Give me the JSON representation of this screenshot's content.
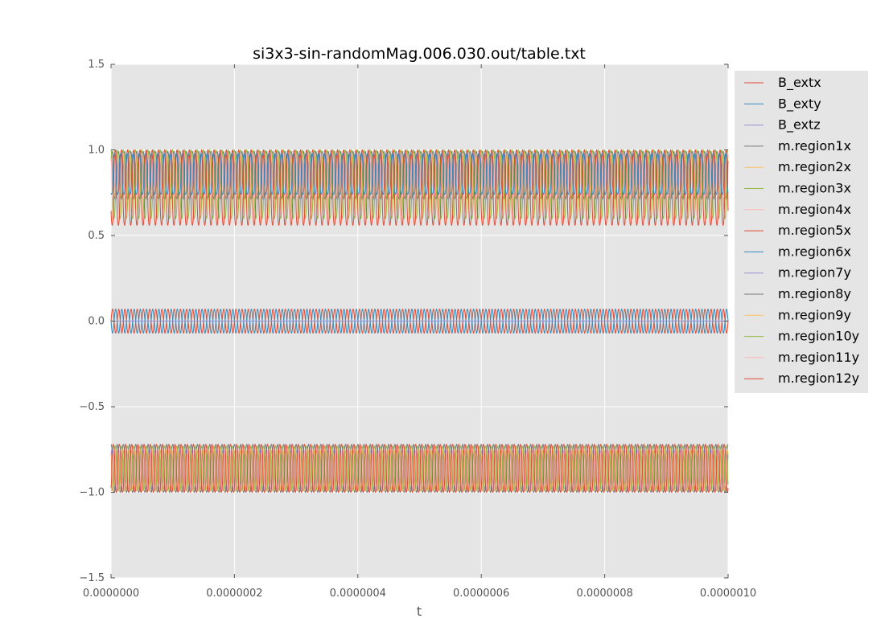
{
  "chart_data": {
    "type": "line",
    "title": "si3x3-sin-randomMag.006.030.out/table.txt",
    "xlabel": "t",
    "ylabel": "",
    "xlim": [
      0,
      1e-06
    ],
    "ylim": [
      -1.5,
      1.5
    ],
    "xticks": [
      0,
      2e-07,
      4e-07,
      6e-07,
      8e-07,
      1e-06
    ],
    "xtick_labels": [
      "0.0000000",
      "0.0000002",
      "0.0000004",
      "0.0000006",
      "0.0000008",
      "0.0000010"
    ],
    "yticks": [
      -1.5,
      -1.0,
      -0.5,
      0.0,
      0.5,
      1.0,
      1.5
    ],
    "ytick_labels": [
      "−1.5",
      "−1.0",
      "−0.5",
      "0.0",
      "0.5",
      "1.0",
      "1.5"
    ],
    "grid": true,
    "legend_position": "outside-right",
    "background": "#e5e5e5",
    "cycles_in_window": 100,
    "series": [
      {
        "name": "B_extx",
        "color": "#e24a33",
        "wave": "sin",
        "center": 0.0,
        "amplitude": 0.07,
        "phase_deg": 0
      },
      {
        "name": "B_exty",
        "color": "#348abd",
        "wave": "sin",
        "center": 0.0,
        "amplitude": 0.07,
        "phase_deg": 180
      },
      {
        "name": "B_extz",
        "color": "#988ed5",
        "wave": "sin",
        "center": 0.0,
        "amplitude": 0.0,
        "phase_deg": 0
      },
      {
        "name": "m.region1x",
        "color": "#777777",
        "wave": "osc",
        "center": 0.85,
        "amplitude": 0.14,
        "phase_deg": 20
      },
      {
        "name": "m.region2x",
        "color": "#fbc15e",
        "wave": "osc",
        "center": 0.85,
        "amplitude": 0.12,
        "phase_deg": 60
      },
      {
        "name": "m.region3x",
        "color": "#8eba42",
        "wave": "osc",
        "center": 0.8,
        "amplitude": 0.2,
        "phase_deg": 100
      },
      {
        "name": "m.region4x",
        "color": "#ffb5b8",
        "wave": "osc",
        "center": 0.85,
        "amplitude": 0.13,
        "phase_deg": 140
      },
      {
        "name": "m.region5x",
        "color": "#e24a33",
        "wave": "osc",
        "center": 0.78,
        "amplitude": 0.22,
        "phase_deg": 200
      },
      {
        "name": "m.region6x",
        "color": "#348abd",
        "wave": "osc",
        "center": 0.86,
        "amplitude": 0.12,
        "phase_deg": 240
      },
      {
        "name": "m.region7y",
        "color": "#988ed5",
        "wave": "osc",
        "center": -0.87,
        "amplitude": 0.12,
        "phase_deg": 30
      },
      {
        "name": "m.region8y",
        "color": "#777777",
        "wave": "osc",
        "center": -0.86,
        "amplitude": 0.14,
        "phase_deg": 90
      },
      {
        "name": "m.region9y",
        "color": "#fbc15e",
        "wave": "osc",
        "center": -0.87,
        "amplitude": 0.12,
        "phase_deg": 150
      },
      {
        "name": "m.region10y",
        "color": "#8eba42",
        "wave": "osc",
        "center": -0.86,
        "amplitude": 0.13,
        "phase_deg": 210
      },
      {
        "name": "m.region11y",
        "color": "#ffb5b8",
        "wave": "osc",
        "center": -0.87,
        "amplitude": 0.12,
        "phase_deg": 270
      },
      {
        "name": "m.region12y",
        "color": "#e24a33",
        "wave": "osc",
        "center": -0.86,
        "amplitude": 0.14,
        "phase_deg": 320
      }
    ]
  }
}
